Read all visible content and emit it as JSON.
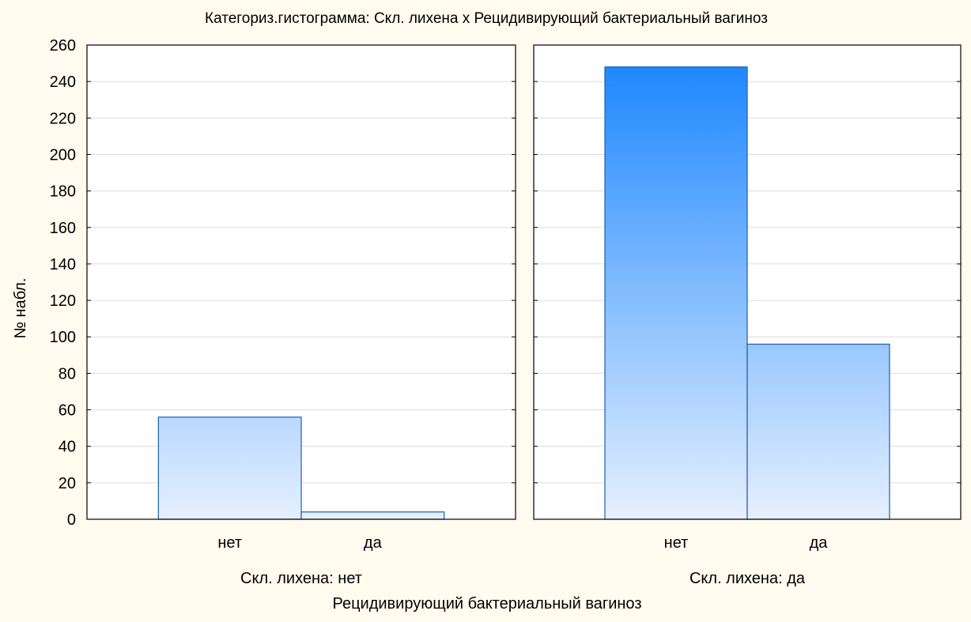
{
  "chart_data": {
    "type": "bar",
    "title": "Категориз.гистограмма: Скл. лихена x Рецидивирующий бактериальный вагиноз",
    "xlabel": "Рецидивирующий бактериальный вагиноз",
    "ylabel": "№ набл.",
    "ylim": [
      0,
      260
    ],
    "yticks": [
      0,
      20,
      40,
      60,
      80,
      100,
      120,
      140,
      160,
      180,
      200,
      220,
      240,
      260
    ],
    "grid": true,
    "categories": [
      "нет",
      "да"
    ],
    "panels": [
      {
        "label": "Скл. лихена: нет",
        "values": [
          56,
          4
        ]
      },
      {
        "label": "Скл. лихена: да",
        "values": [
          248,
          96
        ]
      }
    ]
  },
  "colors": {
    "background": "#fffbee",
    "bar_top": "#1583ff",
    "bar_bottom": "#e6f0fe",
    "bar_stroke": "#1b5fb0",
    "grid": "#dcdcdc"
  }
}
